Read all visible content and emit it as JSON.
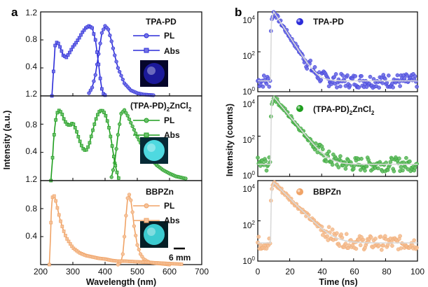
{
  "chart_data": [
    {
      "type": "line",
      "panel_label": "a",
      "xlabel": "Wavelength (nm)",
      "ylabel": "Intensity (a.u.)",
      "xlim": [
        200,
        700
      ],
      "xticks": [
        "200",
        "300",
        "400",
        "500",
        "600",
        "700"
      ],
      "yticks": [
        "0.4",
        "0.8",
        "1.2"
      ],
      "scale_bar_label": "6 mm",
      "subplots": [
        {
          "name": "TPA-PD",
          "color": "#2b2bd9",
          "inset_color": "#1c1aa0",
          "inset_bg": "#05052a",
          "series": [
            {
              "name": "PL",
              "x": [
                350,
                360,
                370,
                380,
                390,
                400,
                410,
                420,
                430,
                440,
                460,
                480,
                500,
                520,
                550
              ],
              "values": [
                0.04,
                0.12,
                0.3,
                0.6,
                0.9,
                1.0,
                0.95,
                0.78,
                0.58,
                0.4,
                0.18,
                0.08,
                0.04,
                0.02,
                0.01
              ]
            },
            {
              "name": "Abs",
              "x": [
                235,
                240,
                245,
                252,
                260,
                270,
                280,
                290,
                300,
                310,
                320,
                330,
                340,
                350,
                360,
                370,
                380,
                385,
                390,
                395,
                400
              ],
              "values": [
                0.0,
                0.35,
                0.72,
                0.78,
                0.7,
                0.58,
                0.55,
                0.62,
                0.7,
                0.76,
                0.83,
                0.91,
                0.97,
                1.0,
                0.97,
                0.8,
                0.45,
                0.25,
                0.1,
                0.03,
                0.01
              ]
            }
          ]
        },
        {
          "name": "(TPA-PD)2ZnCl2",
          "color": "#1e9e1e",
          "inset_color": "#52e3ea",
          "inset_bg": "#062a36",
          "series": [
            {
              "name": "PL",
              "x": [
                420,
                430,
                440,
                450,
                460,
                470,
                480,
                500,
                520,
                540,
                560,
                580,
                600,
                620,
                650
              ],
              "values": [
                0.05,
                0.25,
                0.65,
                0.95,
                1.0,
                0.92,
                0.82,
                0.62,
                0.45,
                0.32,
                0.22,
                0.15,
                0.1,
                0.06,
                0.03
              ]
            },
            {
              "name": "Abs",
              "x": [
                232,
                236,
                240,
                245,
                250,
                258,
                266,
                274,
                282,
                290,
                300,
                310,
                320,
                330,
                340,
                350,
                360,
                370,
                380,
                390,
                400,
                410,
                420,
                430,
                440,
                445
              ],
              "values": [
                0.0,
                0.25,
                0.55,
                0.8,
                0.95,
                1.0,
                0.95,
                0.85,
                0.8,
                0.78,
                0.82,
                0.72,
                0.58,
                0.46,
                0.42,
                0.5,
                0.68,
                0.85,
                0.97,
                1.0,
                0.95,
                0.8,
                0.55,
                0.25,
                0.06,
                0.0
              ]
            }
          ]
        },
        {
          "name": "BBPZn",
          "color": "#f0a366",
          "inset_color": "#3fd5d9",
          "inset_bg": "#061f26",
          "series": [
            {
              "name": "PL",
              "x": [
                440,
                450,
                455,
                460,
                465,
                470,
                475,
                480,
                485,
                490,
                500,
                510,
                520,
                530,
                540,
                560,
                580,
                600
              ],
              "values": [
                0.0,
                0.05,
                0.15,
                0.4,
                0.7,
                0.95,
                1.0,
                0.92,
                0.75,
                0.55,
                0.28,
                0.15,
                0.08,
                0.05,
                0.03,
                0.02,
                0.01,
                0.0
              ]
            },
            {
              "name": "Abs",
              "x": [
                227,
                230,
                233,
                236,
                240,
                245,
                250,
                260,
                270,
                280,
                300,
                320,
                340,
                360,
                380,
                400,
                420,
                440,
                460,
                480,
                500,
                520,
                540,
                560,
                580,
                600,
                620,
                640
              ],
              "values": [
                0.0,
                0.3,
                0.75,
                0.95,
                1.0,
                0.95,
                0.85,
                0.65,
                0.5,
                0.38,
                0.24,
                0.17,
                0.13,
                0.11,
                0.09,
                0.08,
                0.06,
                0.05,
                0.05,
                0.045,
                0.04,
                0.035,
                0.03,
                0.025,
                0.02,
                0.015,
                0.01,
                0.005
              ]
            }
          ]
        }
      ]
    },
    {
      "type": "scatter",
      "panel_label": "b",
      "xlabel": "Time (ns)",
      "ylabel": "Intensity (counts)",
      "xlim": [
        0,
        100
      ],
      "xticks": [
        "0",
        "20",
        "40",
        "60",
        "80",
        "100"
      ],
      "yscale": "log",
      "ylim": [
        1,
        10000
      ],
      "subplots": [
        {
          "name": "TPA-PD",
          "color": "#2b2bd9",
          "legend_style": "sphere",
          "rise": 10,
          "tau": 3.5,
          "peak": 10000,
          "noise_floor": 3.5
        },
        {
          "name": "(TPA-PD)2ZnCl2",
          "color": "#1e9e1e",
          "legend_style": "sphere",
          "rise": 10,
          "tau": 4.5,
          "peak": 9000,
          "noise_floor": 4
        },
        {
          "name": "BBPZn",
          "color": "#f0a366",
          "legend_style": "sphere",
          "rise": 10,
          "tau": 5.5,
          "peak": 8000,
          "noise_floor": 8
        }
      ]
    }
  ]
}
